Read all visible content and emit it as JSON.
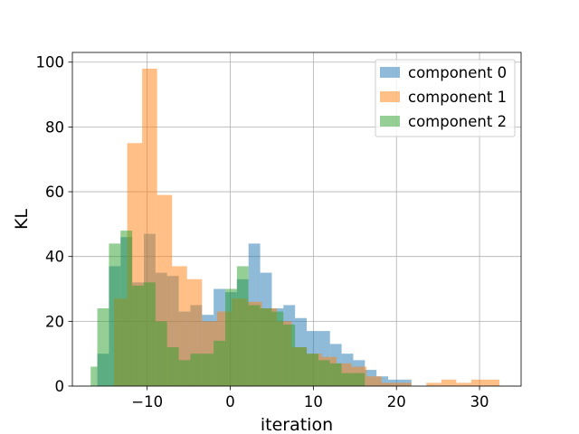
{
  "chart_data": {
    "type": "bar",
    "title": "",
    "xlabel": "iteration",
    "ylabel": "KL",
    "xlim": [
      -19,
      35
    ],
    "ylim": [
      0,
      103
    ],
    "xticks": [
      -10,
      0,
      10,
      20,
      30
    ],
    "xtick_labels": [
      "−10",
      "0",
      "10",
      "20",
      "30"
    ],
    "yticks": [
      0,
      20,
      40,
      60,
      80,
      100
    ],
    "ytick_labels": [
      "0",
      "20",
      "40",
      "60",
      "80",
      "100"
    ],
    "grid": true,
    "legend_position": "top-right",
    "series": [
      {
        "name": "component 0",
        "color": "#1f77b4",
        "bins": [
          {
            "x0": -16.0,
            "x1": -14.6,
            "count": 10
          },
          {
            "x0": -14.6,
            "x1": -13.2,
            "count": 37
          },
          {
            "x0": -13.2,
            "x1": -11.8,
            "count": 46
          },
          {
            "x0": -11.8,
            "x1": -10.4,
            "count": 32
          },
          {
            "x0": -10.4,
            "x1": -9.0,
            "count": 47
          },
          {
            "x0": -9.0,
            "x1": -7.6,
            "count": 35
          },
          {
            "x0": -7.6,
            "x1": -6.2,
            "count": 34
          },
          {
            "x0": -6.2,
            "x1": -4.8,
            "count": 23
          },
          {
            "x0": -4.8,
            "x1": -3.4,
            "count": 25
          },
          {
            "x0": -3.4,
            "x1": -2.0,
            "count": 22
          },
          {
            "x0": -2.0,
            "x1": -0.6,
            "count": 30
          },
          {
            "x0": -0.6,
            "x1": 0.8,
            "count": 29
          },
          {
            "x0": 0.8,
            "x1": 2.2,
            "count": 33
          },
          {
            "x0": 2.2,
            "x1": 3.6,
            "count": 44
          },
          {
            "x0": 3.6,
            "x1": 5.0,
            "count": 35
          },
          {
            "x0": 5.0,
            "x1": 6.4,
            "count": 24
          },
          {
            "x0": 6.4,
            "x1": 7.8,
            "count": 25
          },
          {
            "x0": 7.8,
            "x1": 9.2,
            "count": 21
          },
          {
            "x0": 9.2,
            "x1": 10.6,
            "count": 17
          },
          {
            "x0": 10.6,
            "x1": 12.0,
            "count": 17
          },
          {
            "x0": 12.0,
            "x1": 13.4,
            "count": 13
          },
          {
            "x0": 13.4,
            "x1": 14.8,
            "count": 10
          },
          {
            "x0": 14.8,
            "x1": 16.2,
            "count": 8
          },
          {
            "x0": 16.2,
            "x1": 17.6,
            "count": 5
          },
          {
            "x0": 17.6,
            "x1": 19.0,
            "count": 3
          },
          {
            "x0": 19.0,
            "x1": 20.4,
            "count": 2
          },
          {
            "x0": 20.4,
            "x1": 21.8,
            "count": 2
          }
        ]
      },
      {
        "name": "component 1",
        "color": "#ff7f0e",
        "bins": [
          {
            "x0": -14.0,
            "x1": -12.4,
            "count": 27
          },
          {
            "x0": -12.4,
            "x1": -10.6,
            "count": 75
          },
          {
            "x0": -10.6,
            "x1": -8.8,
            "count": 98
          },
          {
            "x0": -8.8,
            "x1": -7.0,
            "count": 59
          },
          {
            "x0": -7.0,
            "x1": -5.2,
            "count": 37
          },
          {
            "x0": -5.2,
            "x1": -3.4,
            "count": 33
          },
          {
            "x0": -3.4,
            "x1": -1.6,
            "count": 20
          },
          {
            "x0": -1.6,
            "x1": 0.2,
            "count": 23
          },
          {
            "x0": 0.2,
            "x1": 2.0,
            "count": 27
          },
          {
            "x0": 2.0,
            "x1": 3.8,
            "count": 26
          },
          {
            "x0": 3.8,
            "x1": 5.6,
            "count": 24
          },
          {
            "x0": 5.6,
            "x1": 7.4,
            "count": 20
          },
          {
            "x0": 7.4,
            "x1": 9.2,
            "count": 12
          },
          {
            "x0": 9.2,
            "x1": 11.0,
            "count": 10
          },
          {
            "x0": 11.0,
            "x1": 12.8,
            "count": 9
          },
          {
            "x0": 12.8,
            "x1": 14.6,
            "count": 7
          },
          {
            "x0": 14.6,
            "x1": 16.4,
            "count": 6
          },
          {
            "x0": 16.4,
            "x1": 18.2,
            "count": 3
          },
          {
            "x0": 18.2,
            "x1": 20.0,
            "count": 1
          },
          {
            "x0": 20.0,
            "x1": 21.8,
            "count": 1
          },
          {
            "x0": 21.8,
            "x1": 23.6,
            "count": 0
          },
          {
            "x0": 23.6,
            "x1": 25.4,
            "count": 1
          },
          {
            "x0": 25.4,
            "x1": 27.2,
            "count": 2
          },
          {
            "x0": 27.2,
            "x1": 29.0,
            "count": 1
          },
          {
            "x0": 29.0,
            "x1": 30.8,
            "count": 2
          },
          {
            "x0": 30.8,
            "x1": 32.4,
            "count": 2
          }
        ]
      },
      {
        "name": "component 2",
        "color": "#2ca02c",
        "bins": [
          {
            "x0": -16.8,
            "x1": -16.0,
            "count": 6
          },
          {
            "x0": -16.0,
            "x1": -14.6,
            "count": 24
          },
          {
            "x0": -14.6,
            "x1": -13.2,
            "count": 44
          },
          {
            "x0": -13.2,
            "x1": -11.8,
            "count": 48
          },
          {
            "x0": -11.8,
            "x1": -10.4,
            "count": 31
          },
          {
            "x0": -10.4,
            "x1": -9.0,
            "count": 32
          },
          {
            "x0": -9.0,
            "x1": -7.6,
            "count": 20
          },
          {
            "x0": -7.6,
            "x1": -6.2,
            "count": 12
          },
          {
            "x0": -6.2,
            "x1": -4.8,
            "count": 8
          },
          {
            "x0": -4.8,
            "x1": -3.4,
            "count": 10
          },
          {
            "x0": -3.4,
            "x1": -2.0,
            "count": 10
          },
          {
            "x0": -2.0,
            "x1": -0.6,
            "count": 14
          },
          {
            "x0": -0.6,
            "x1": 0.8,
            "count": 30
          },
          {
            "x0": 0.8,
            "x1": 2.2,
            "count": 37
          },
          {
            "x0": 2.2,
            "x1": 3.6,
            "count": 25
          },
          {
            "x0": 3.6,
            "x1": 5.0,
            "count": 24
          },
          {
            "x0": 5.0,
            "x1": 6.4,
            "count": 23
          },
          {
            "x0": 6.4,
            "x1": 7.8,
            "count": 19
          },
          {
            "x0": 7.8,
            "x1": 9.2,
            "count": 12
          },
          {
            "x0": 9.2,
            "x1": 10.6,
            "count": 10
          },
          {
            "x0": 10.6,
            "x1": 12.0,
            "count": 8
          },
          {
            "x0": 12.0,
            "x1": 13.4,
            "count": 7
          },
          {
            "x0": 13.4,
            "x1": 14.8,
            "count": 4
          },
          {
            "x0": 14.8,
            "x1": 16.2,
            "count": 4
          }
        ]
      }
    ]
  }
}
